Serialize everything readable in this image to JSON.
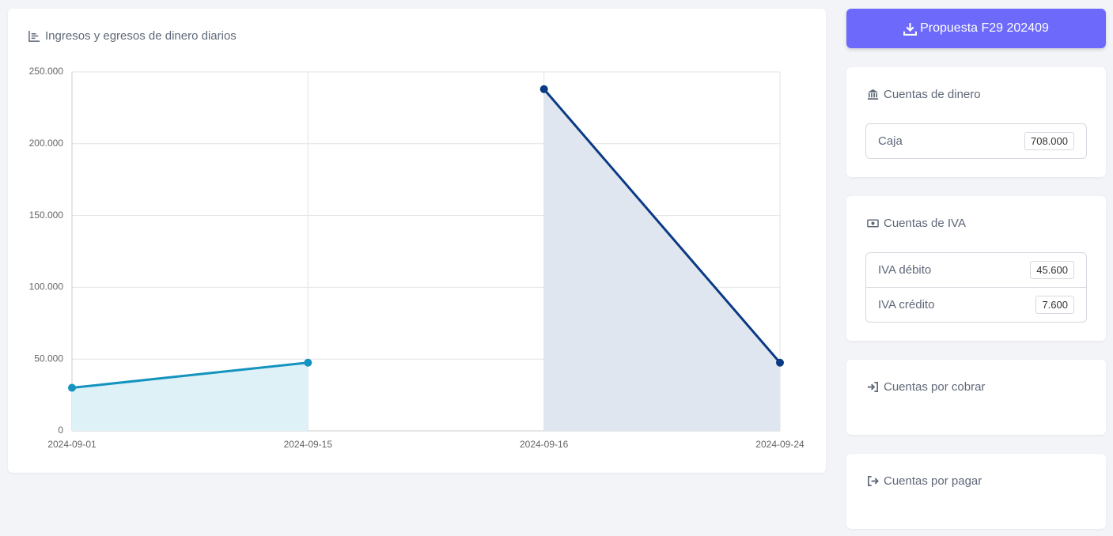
{
  "chart_data": {
    "type": "line",
    "title": "Ingresos y egresos de dinero diarios",
    "categories": [
      "2024-09-01",
      "2024-09-15",
      "2024-09-16",
      "2024-09-24"
    ],
    "series": [
      {
        "color": "#1493bf",
        "fill": "#ddf1f7",
        "values": [
          30000,
          47500,
          null,
          null
        ]
      },
      {
        "color": "#0b3a85",
        "fill": "#dfe6ef",
        "values": [
          null,
          null,
          238000,
          47500
        ]
      }
    ],
    "ylim": [
      0,
      250000
    ],
    "yticks": [
      0,
      {
        "value": 50000,
        "label": "50.000"
      },
      {
        "value": 100000,
        "label": "100.000"
      },
      {
        "value": 150000,
        "label": "150.000"
      },
      {
        "value": 200000,
        "label": "200.000"
      },
      {
        "value": 250000,
        "label": "250.000"
      }
    ],
    "grid": true
  },
  "sidebar": {
    "button": "Propuesta F29 202409",
    "cards": [
      {
        "title": "Cuentas de dinero",
        "rows": [
          {
            "label": "Caja",
            "value": "708.000"
          }
        ]
      },
      {
        "title": "Cuentas de IVA",
        "rows": [
          {
            "label": "IVA débito",
            "value": "45.600"
          },
          {
            "label": "IVA crédito",
            "value": "7.600"
          }
        ]
      },
      {
        "title": "Cuentas por cobrar"
      },
      {
        "title": "Cuentas por pagar"
      }
    ]
  }
}
